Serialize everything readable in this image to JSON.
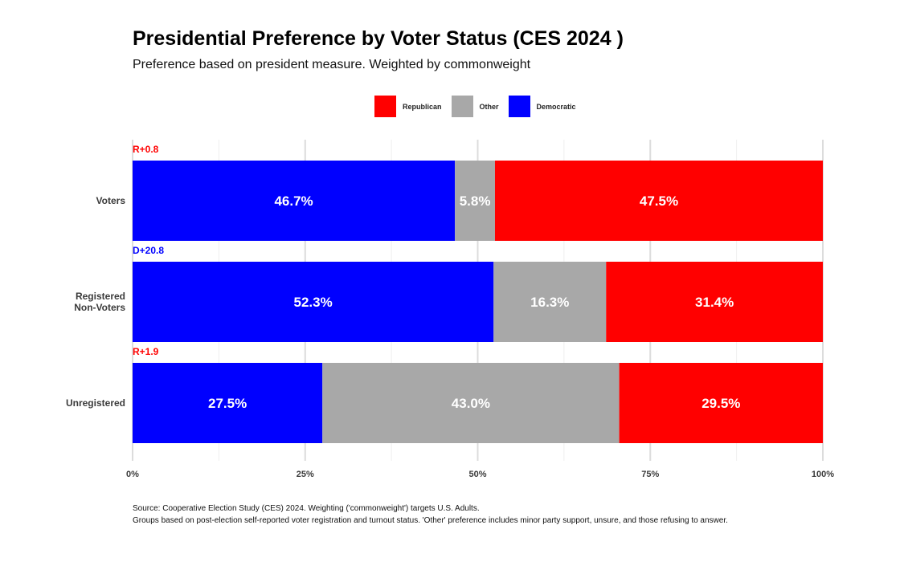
{
  "header": {
    "title": "Presidential Preference by Voter Status (CES 2024 )",
    "subtitle": "Preference based on president measure. Weighted by commonweight"
  },
  "legend": [
    {
      "name": "Republican",
      "color": "#ff0000"
    },
    {
      "name": "Other",
      "color": "#a8a8a8"
    },
    {
      "name": "Democratic",
      "color": "#0000ff"
    }
  ],
  "caption": {
    "line1": "Source: Cooperative Election Study (CES) 2024. Weighting ('commonweight') targets U.S. Adults.",
    "line2": "Groups based on post-election self-reported voter registration and turnout status. 'Other' preference includes minor party support, unsure, and those refusing to answer."
  },
  "chart_data": {
    "type": "bar",
    "orientation": "horizontal",
    "stacked": true,
    "categories": [
      "Voters",
      "Registered\nNon-Voters",
      "Unregistered"
    ],
    "series": [
      {
        "name": "Democratic",
        "color": "#0000ff",
        "values": [
          46.7,
          52.3,
          27.5
        ],
        "labels": [
          "46.7%",
          "52.3%",
          "27.5%"
        ]
      },
      {
        "name": "Other",
        "color": "#a8a8a8",
        "values": [
          5.8,
          16.3,
          43.0
        ],
        "labels": [
          "5.8%",
          "16.3%",
          "43.0%"
        ]
      },
      {
        "name": "Republican",
        "color": "#ff0000",
        "values": [
          47.5,
          31.4,
          29.5
        ],
        "labels": [
          "47.5%",
          "31.4%",
          "29.5%"
        ]
      }
    ],
    "annotations": [
      {
        "category": "Voters",
        "text": "R+0.8",
        "color": "#ff0000"
      },
      {
        "category": "Registered\nNon-Voters",
        "text": "D+20.8",
        "color": "#0000ff"
      },
      {
        "category": "Unregistered",
        "text": "R+1.9",
        "color": "#ff0000"
      }
    ],
    "xlim": [
      0,
      100
    ],
    "xticks": [
      0,
      25,
      50,
      75,
      100
    ],
    "xtick_labels": [
      "0%",
      "25%",
      "50%",
      "75%",
      "100%"
    ],
    "grid": true,
    "legend_position": "top"
  }
}
